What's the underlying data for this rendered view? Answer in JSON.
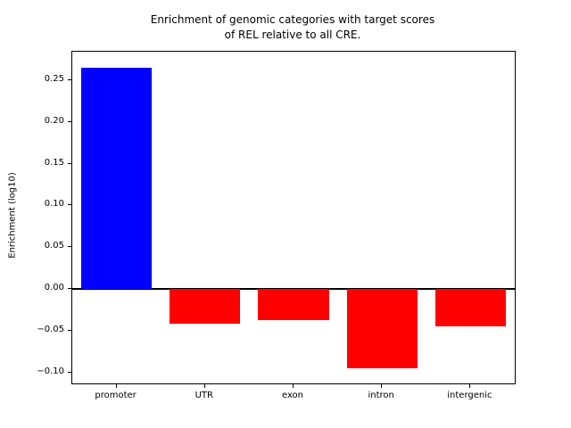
{
  "chart_data": {
    "type": "bar",
    "title": "Enrichment of genomic categories with target scores\nof REL relative to all CRE.",
    "categories": [
      "promoter",
      "UTR",
      "exon",
      "intron",
      "intergenic"
    ],
    "values": [
      0.265,
      -0.042,
      -0.037,
      -0.095,
      -0.045
    ],
    "colors": [
      "#0000ff",
      "#ff0000",
      "#ff0000",
      "#ff0000",
      "#ff0000"
    ],
    "xlabel": "",
    "ylabel": "Enrichment (log10)",
    "ylim": [
      -0.113,
      0.284
    ],
    "yticks": [
      0.25,
      0.2,
      0.15,
      0.1,
      0.05,
      0.0,
      -0.05,
      -0.1
    ],
    "grid": false,
    "zero_line": true,
    "legend": "none"
  }
}
